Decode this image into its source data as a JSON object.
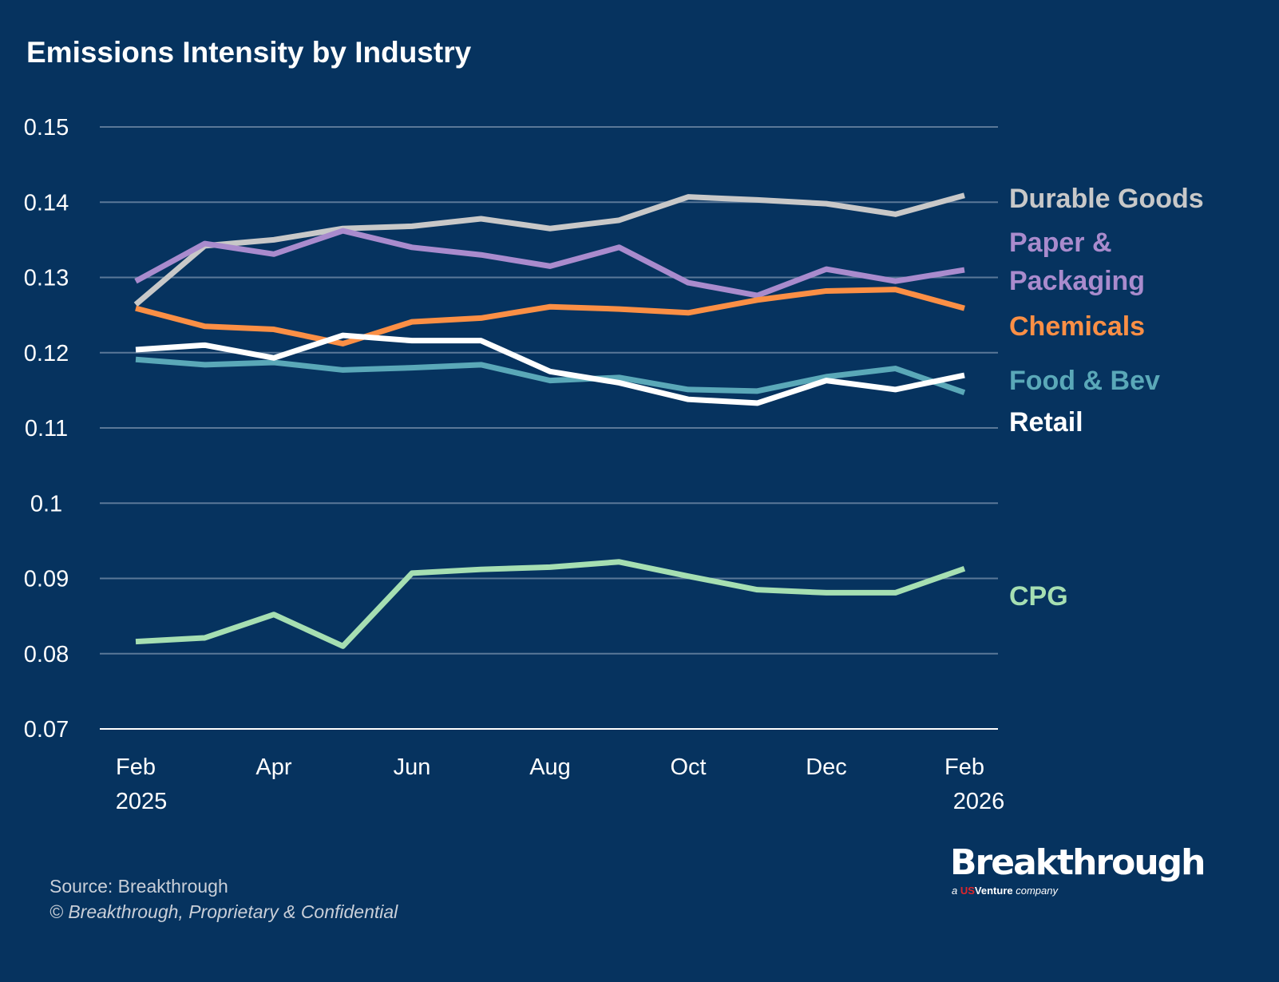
{
  "chart_data": {
    "type": "line",
    "title": "Emissions Intensity by Industry",
    "xlabel": "",
    "ylabel": "",
    "x": [
      "Feb 2025",
      "Mar 2025",
      "Apr 2025",
      "May 2025",
      "Jun 2025",
      "Jul 2025",
      "Aug 2025",
      "Sep 2025",
      "Oct 2025",
      "Nov 2025",
      "Dec 2025",
      "Jan 2026",
      "Feb 2026"
    ],
    "x_tick_labels": [
      {
        "index": 0,
        "line1": "Feb",
        "line2": "2025"
      },
      {
        "index": 2,
        "line1": "Apr",
        "line2": ""
      },
      {
        "index": 4,
        "line1": "Jun",
        "line2": ""
      },
      {
        "index": 6,
        "line1": "Aug",
        "line2": ""
      },
      {
        "index": 8,
        "line1": "Oct",
        "line2": ""
      },
      {
        "index": 10,
        "line1": "Dec",
        "line2": ""
      },
      {
        "index": 12,
        "line1": "Feb",
        "line2": "2026"
      }
    ],
    "ylim": [
      0.07,
      0.15
    ],
    "y_ticks": [
      "0.07",
      "0.08",
      "0.09",
      "0.1",
      "0.11",
      "0.12",
      "0.13",
      "0.14",
      "0.15"
    ],
    "grid": "horizontal",
    "legend": "right (direct labels)",
    "series": [
      {
        "name": "Durable Goods",
        "label_lines": [
          "Durable Goods"
        ],
        "color": "#c8c8c8",
        "values": [
          0.1264,
          0.1342,
          0.135,
          0.1365,
          0.1368,
          0.1378,
          0.1365,
          0.1376,
          0.1407,
          0.1403,
          0.1398,
          0.1384,
          0.1409
        ]
      },
      {
        "name": "Paper & Packaging",
        "label_lines": [
          "Paper &",
          "Packaging"
        ],
        "color": "#a98bcd",
        "values": [
          0.1295,
          0.1345,
          0.1331,
          0.1362,
          0.134,
          0.133,
          0.1315,
          0.134,
          0.1293,
          0.1276,
          0.1311,
          0.1295,
          0.131
        ]
      },
      {
        "name": "Chemicals",
        "label_lines": [
          "Chemicals"
        ],
        "color": "#fb8f45",
        "values": [
          0.1259,
          0.1235,
          0.1231,
          0.1212,
          0.1241,
          0.1246,
          0.1261,
          0.1258,
          0.1253,
          0.127,
          0.1282,
          0.1284,
          0.1259
        ]
      },
      {
        "name": "Food & Bev",
        "label_lines": [
          "Food & Bev"
        ],
        "color": "#5aa8b8",
        "values": [
          0.1191,
          0.1184,
          0.1187,
          0.1177,
          0.118,
          0.1184,
          0.1163,
          0.1167,
          0.1151,
          0.1149,
          0.1168,
          0.1179,
          0.1147
        ]
      },
      {
        "name": "Retail",
        "label_lines": [
          "Retail"
        ],
        "color": "#ffffff",
        "values": [
          0.1204,
          0.121,
          0.1193,
          0.1223,
          0.1216,
          0.1216,
          0.1175,
          0.116,
          0.1138,
          0.1133,
          0.1163,
          0.1151,
          0.117
        ]
      },
      {
        "name": "CPG",
        "label_lines": [
          "CPG"
        ],
        "color": "#a6dfb2",
        "values": [
          0.0816,
          0.0821,
          0.0852,
          0.081,
          0.0907,
          0.0912,
          0.0915,
          0.0922,
          0.0903,
          0.0885,
          0.0881,
          0.0881,
          0.0913
        ]
      }
    ]
  },
  "footer": {
    "source": "Source: Breakthrough",
    "copyright": "© Breakthrough, Proprietary & Confidential"
  },
  "logo": {
    "name": "Breakthrough",
    "sub_prefix": "a",
    "sub_us": "US",
    "sub_venture": "Venture",
    "sub_suffix": "company"
  },
  "colors": {
    "background": "#06335f",
    "gridline": "#5a7898"
  }
}
